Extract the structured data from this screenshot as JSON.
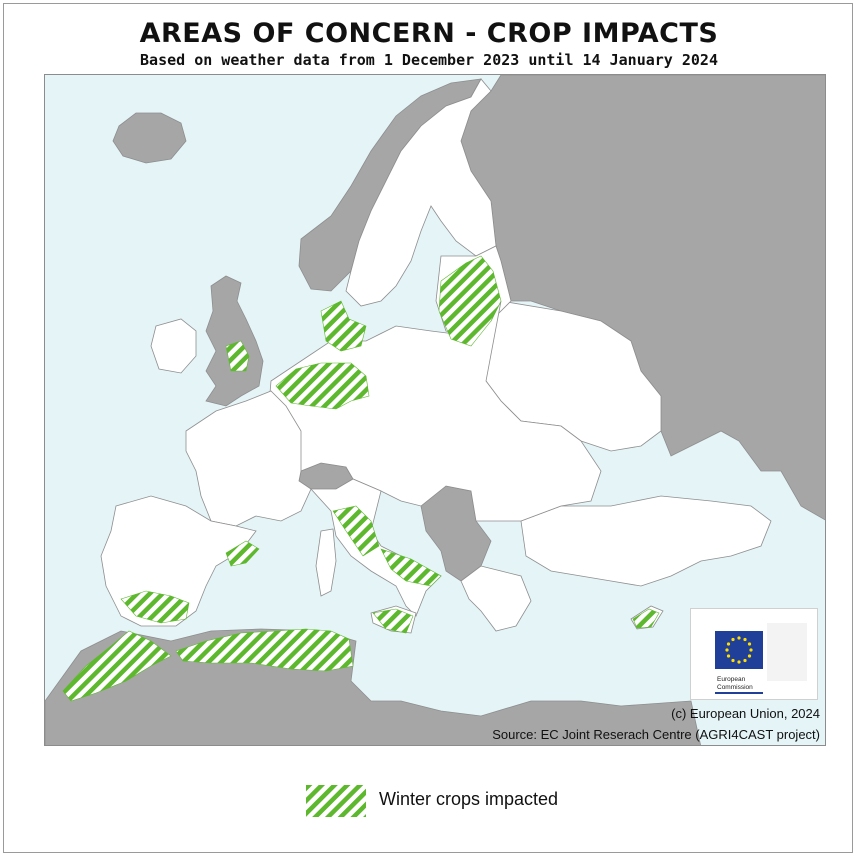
{
  "title": "AREAS OF CONCERN - CROP IMPACTS",
  "subtitle": "Based on weather data from 1 December 2023 until 14 January 2024",
  "legend": {
    "label": "Winter crops impacted",
    "hatch_color": "#5db82e"
  },
  "credits": {
    "copyright": "(c) European Union, 2024",
    "source": "Source: EC Joint Reserach Centre (AGRI4CAST project)"
  },
  "logo": {
    "line1": "European",
    "line2": "Commission",
    "flag_color": "#1f3f99",
    "star_color": "#ffdd00"
  },
  "map_colors": {
    "sea": "#e4f4f7",
    "eu_land": "#ffffff",
    "non_eu_land": "#a6a6a6",
    "borders": "#8e8e8e",
    "hatch": "#5db82e"
  },
  "impacted_regions": [
    "Latvia / Lithuania",
    "Denmark",
    "Northern England",
    "Netherlands / Northern Germany",
    "Northern Italy",
    "Southern Italy",
    "Sicily",
    "Eastern Spain",
    "Southern Spain",
    "Northern Morocco",
    "Northern Algeria / Tunisia",
    "Cyprus"
  ]
}
